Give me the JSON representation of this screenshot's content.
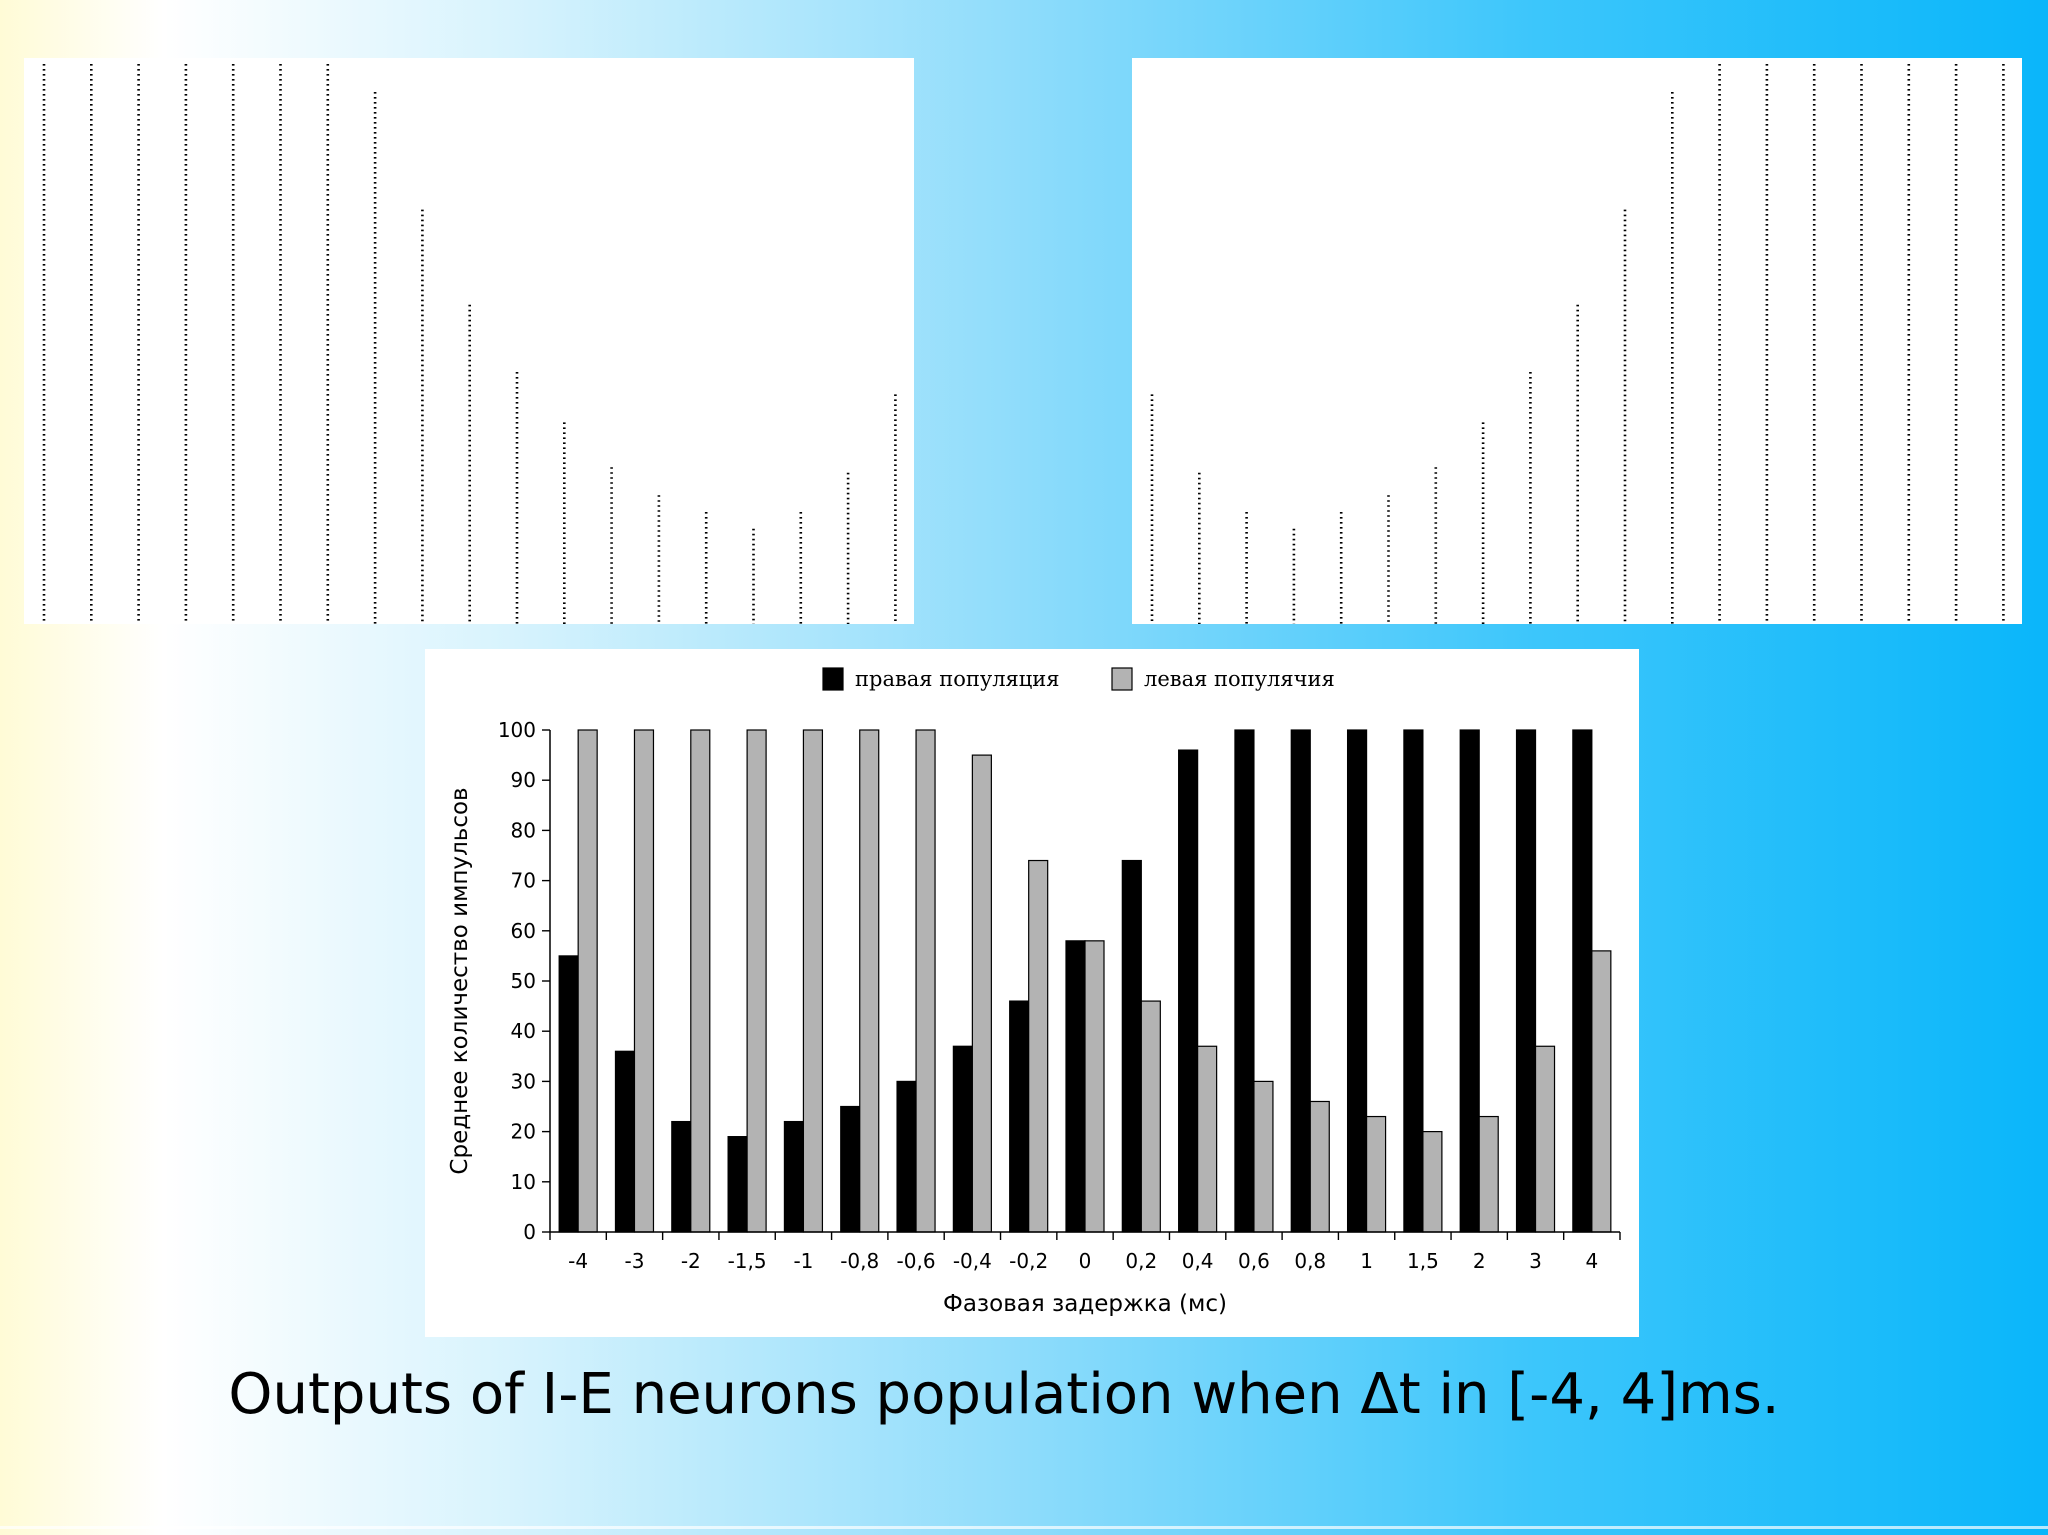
{
  "caption": "Outputs of I-E neurons population when  Δt in [-4, 4]ms.",
  "raster_left": {
    "type": "raster",
    "max": 100,
    "values": [
      100,
      100,
      100,
      100,
      100,
      100,
      100,
      95,
      74,
      57,
      45,
      36,
      28,
      23,
      20,
      17,
      20,
      27,
      41
    ]
  },
  "raster_right": {
    "type": "raster",
    "max": 100,
    "values": [
      41,
      27,
      20,
      17,
      20,
      23,
      28,
      36,
      45,
      57,
      74,
      95,
      100,
      100,
      100,
      100,
      100,
      100,
      100
    ]
  },
  "chart_data": {
    "type": "bar",
    "categories": [
      "-4",
      "-3",
      "-2",
      "-1,5",
      "-1",
      "-0,8",
      "-0,6",
      "-0,4",
      "-0,2",
      "0",
      "0,2",
      "0,4",
      "0,6",
      "0,8",
      "1",
      "1,5",
      "2",
      "3",
      "4"
    ],
    "series": [
      {
        "name": "правая популяция",
        "color": "#000000",
        "values": [
          55,
          36,
          22,
          19,
          22,
          25,
          30,
          37,
          46,
          58,
          74,
          96,
          100,
          100,
          100,
          100,
          100,
          100,
          100
        ]
      },
      {
        "name": "левая популячия",
        "color": "#b3b3b3",
        "values": [
          100,
          100,
          100,
          100,
          100,
          100,
          100,
          95,
          74,
          58,
          46,
          37,
          30,
          26,
          23,
          20,
          23,
          37,
          56
        ]
      }
    ],
    "xlabel": "Фазовая задержка (мс)",
    "ylabel": "Среднее количество импульсов",
    "ylim": [
      0,
      100
    ],
    "yticks": [
      0,
      10,
      20,
      30,
      40,
      50,
      60,
      70,
      80,
      90,
      100
    ],
    "legend_position": "top-center",
    "grid": false
  }
}
